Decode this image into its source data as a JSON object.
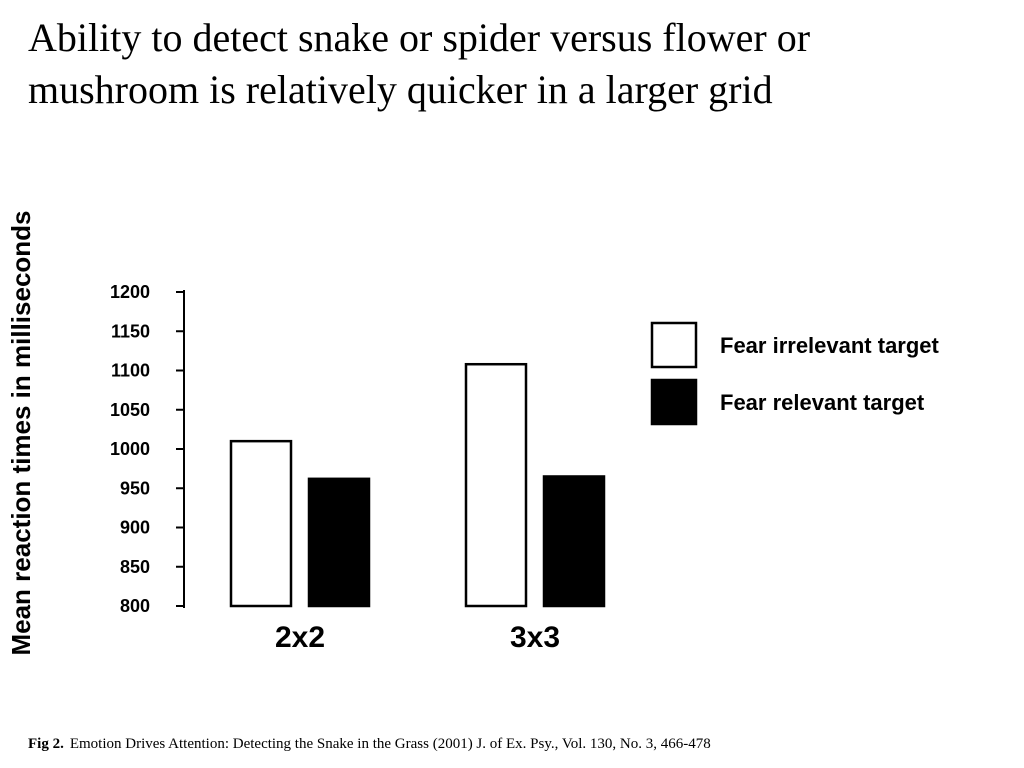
{
  "slide": {
    "title": "Ability to detect snake or spider versus flower or mushroom is relatively quicker in a larger grid"
  },
  "caption": {
    "label": "Fig 2.",
    "text": "Emotion Drives Attention: Detecting the Snake in the Grass (2001) J. of Ex. Psy., Vol. 130, No. 3, 466-478"
  },
  "chart_data": {
    "type": "bar",
    "title": "",
    "xlabel": "",
    "ylabel": "Mean reaction times in milliseconds",
    "ylim": [
      800,
      1200
    ],
    "yticks": [
      800,
      850,
      900,
      950,
      1000,
      1050,
      1100,
      1150,
      1200
    ],
    "categories": [
      "2x2",
      "3x3"
    ],
    "series": [
      {
        "name": "Fear irrelevant target",
        "values": [
          1010,
          1108
        ],
        "color": "#ffffff"
      },
      {
        "name": "Fear relevant target",
        "values": [
          962,
          965
        ],
        "color": "#000000"
      }
    ],
    "legend_position": "top-right",
    "grid": false
  }
}
